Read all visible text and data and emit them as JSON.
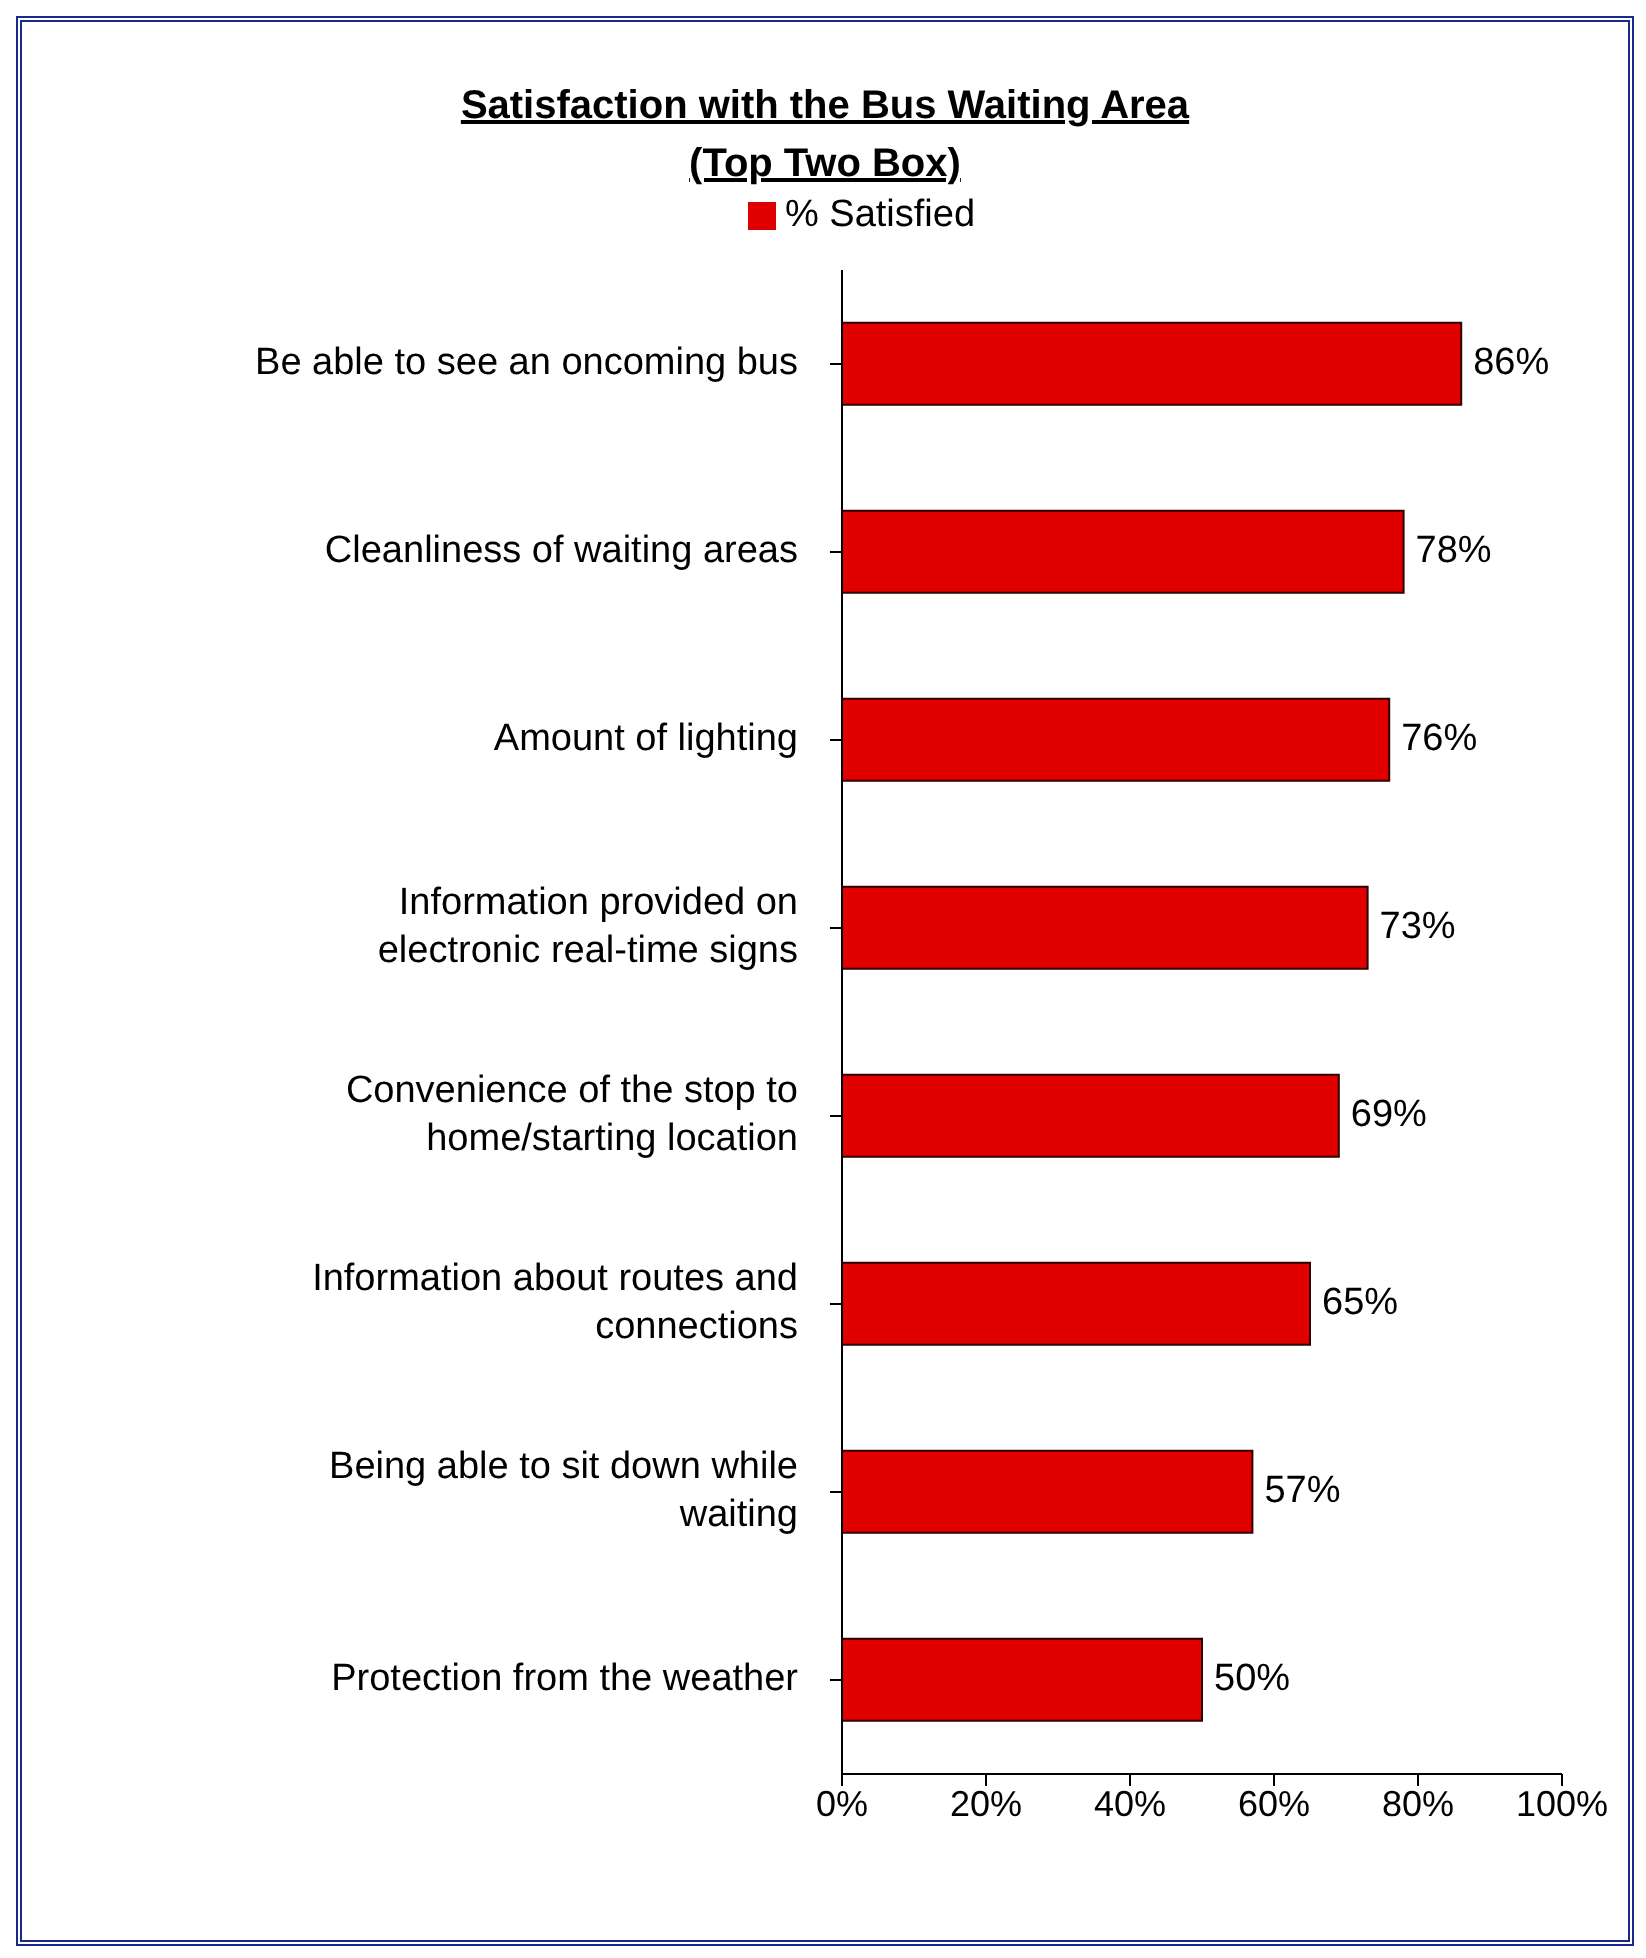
{
  "chart_data": {
    "type": "bar",
    "orientation": "horizontal",
    "title": "Satisfaction with the Bus Waiting Area",
    "subtitle": "(Top Two Box)",
    "categories": [
      "Be able to see an oncoming bus",
      "Cleanliness of waiting areas",
      "Amount of lighting",
      "Information provided on electronic real-time signs",
      "Convenience of the stop to home/starting location",
      "Information about routes and connections",
      "Being able to sit down while waiting",
      "Protection from the weather"
    ],
    "series": [
      {
        "name": "% Satisfied",
        "color": "#e00000",
        "values": [
          86,
          78,
          76,
          73,
          69,
          65,
          57,
          50
        ],
        "value_labels": [
          "86%",
          "78%",
          "76%",
          "73%",
          "69%",
          "65%",
          "57%",
          "50%"
        ]
      }
    ],
    "xlim": [
      0,
      100
    ],
    "xticks": [
      {
        "value": 0,
        "label": "0%"
      },
      {
        "value": 20,
        "label": "20%"
      },
      {
        "value": 40,
        "label": "40%"
      },
      {
        "value": 60,
        "label": "60%"
      },
      {
        "value": 80,
        "label": "80%"
      },
      {
        "value": 100,
        "label": "100%"
      }
    ],
    "legend": "top",
    "grid": false
  }
}
